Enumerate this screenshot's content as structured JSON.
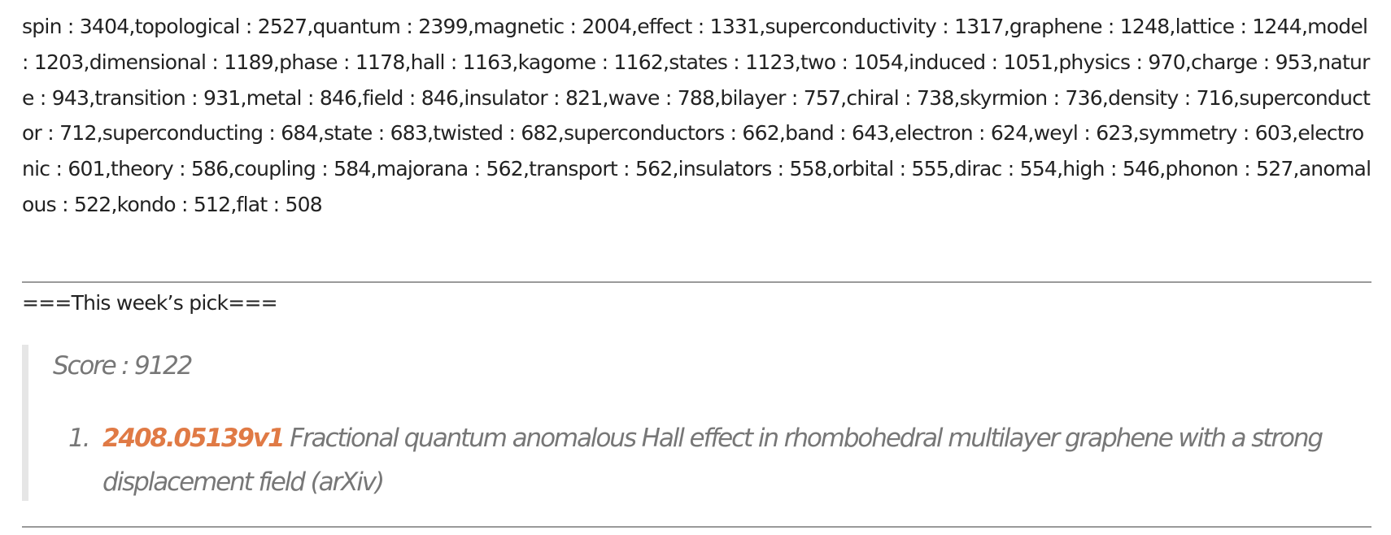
{
  "keywords_text": "spin : 3404,topological : 2527,quantum : 2399,magnetic : 2004,effect : 1331,superconductivity : 1317,graphene : 1248,lattice : 1244,model : 1203,dimensional : 1189,phase : 1178,hall : 1163,kagome : 1162,states : 1123,two : 1054,induced : 1051,physics : 970,charge : 953,nature : 943,transition : 931,metal : 846,field : 846,insulator : 821,wave : 788,bilayer : 757,chiral : 738,skyrmion : 736,density : 716,superconductor : 712,superconducting : 684,state : 683,twisted : 682,superconductors : 662,band : 643,electron : 624,weyl : 623,symmetry : 603,electronic : 601,theory : 586,coupling : 584,majorana : 562,transport : 562,insulators : 558,orbital : 555,dirac : 554,high : 546,phonon : 527,anomalous : 522,kondo : 512,flat : 508",
  "pick_heading": "===This week’s pick===",
  "pick": {
    "score": "Score : 9122",
    "items": [
      {
        "number": "1.",
        "id": "2408.05139v1",
        "title": " Fractional quantum anomalous Hall effect in rhombohedral multilayer graphene with a strong displacement field (arXiv)"
      }
    ]
  },
  "colors": {
    "text": "#222222",
    "muted": "#777777",
    "link": "#e07a45",
    "rule": "#9a9a9a",
    "quote_border": "#e6e6e6"
  }
}
